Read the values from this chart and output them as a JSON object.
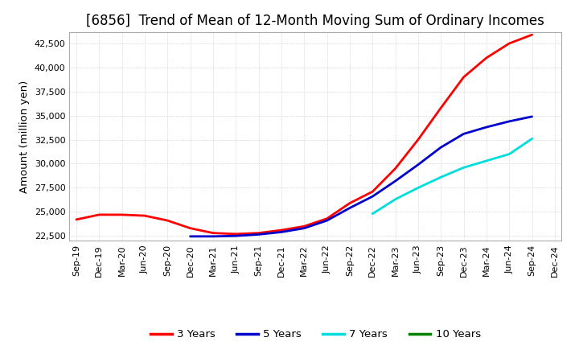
{
  "title": "[6856]  Trend of Mean of 12-Month Moving Sum of Ordinary Incomes",
  "ylabel": "Amount (million yen)",
  "background_color": "#ffffff",
  "plot_bg_color": "#ffffff",
  "grid_color": "#bbbbbb",
  "ylim": [
    22000,
    43700
  ],
  "yticks": [
    22500,
    25000,
    27500,
    30000,
    32500,
    35000,
    37500,
    40000,
    42500
  ],
  "x_labels": [
    "Sep-19",
    "Dec-19",
    "Mar-20",
    "Jun-20",
    "Sep-20",
    "Dec-20",
    "Mar-21",
    "Jun-21",
    "Sep-21",
    "Dec-21",
    "Mar-22",
    "Jun-22",
    "Sep-22",
    "Dec-22",
    "Mar-23",
    "Jun-23",
    "Sep-23",
    "Dec-23",
    "Mar-24",
    "Jun-24",
    "Sep-24",
    "Dec-24"
  ],
  "series": {
    "3 Years": {
      "color": "#ff0000",
      "values": [
        24200,
        24700,
        24700,
        24600,
        24100,
        23300,
        22800,
        22700,
        22800,
        23100,
        23500,
        24300,
        25900,
        27100,
        29500,
        32500,
        35800,
        39000,
        41000,
        42500,
        43400,
        null
      ]
    },
    "5 Years": {
      "color": "#0000cc",
      "values": [
        null,
        null,
        null,
        null,
        null,
        22450,
        22450,
        22500,
        22650,
        22900,
        23300,
        24100,
        25400,
        26600,
        28200,
        29900,
        31700,
        33100,
        33800,
        34400,
        34900,
        null
      ]
    },
    "7 Years": {
      "color": "#00dddd",
      "values": [
        null,
        null,
        null,
        null,
        null,
        null,
        null,
        null,
        null,
        null,
        null,
        null,
        null,
        24800,
        26300,
        27500,
        28600,
        29600,
        30300,
        31000,
        32600,
        null
      ]
    },
    "10 Years": {
      "color": "#008000",
      "values": [
        null,
        null,
        null,
        null,
        null,
        null,
        null,
        null,
        null,
        null,
        null,
        null,
        null,
        null,
        null,
        null,
        null,
        null,
        null,
        null,
        null,
        null
      ]
    }
  },
  "legend_order": [
    "3 Years",
    "5 Years",
    "7 Years",
    "10 Years"
  ],
  "title_fontsize": 12,
  "title_fontweight": "normal",
  "axis_fontsize": 9.5,
  "tick_fontsize": 8,
  "legend_fontsize": 9.5,
  "linewidth": 2.0
}
